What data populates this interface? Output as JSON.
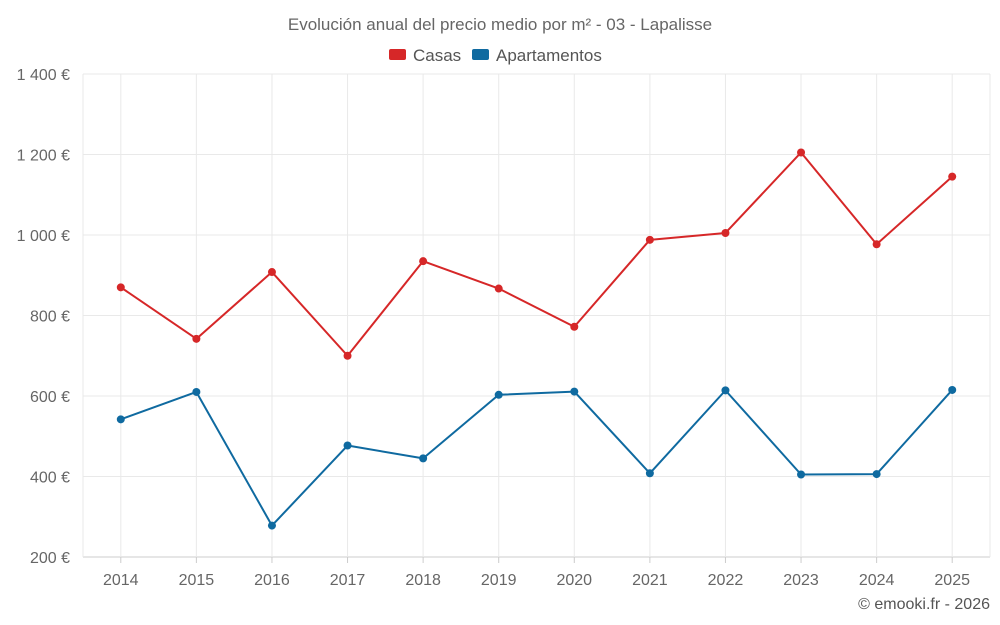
{
  "chart_data": {
    "type": "line",
    "title": "Evolución anual del precio medio por m² - 03 - Lapalisse",
    "categories": [
      "2014",
      "2015",
      "2016",
      "2017",
      "2018",
      "2019",
      "2020",
      "2021",
      "2022",
      "2023",
      "2024",
      "2025"
    ],
    "series": [
      {
        "name": "Casas",
        "color": "#d62728",
        "values": [
          870,
          742,
          908,
          700,
          935,
          867,
          772,
          988,
          1005,
          1205,
          977,
          1145
        ]
      },
      {
        "name": "Apartamentos",
        "color": "#0f6aa0",
        "values": [
          542,
          610,
          278,
          477,
          445,
          603,
          611,
          408,
          614,
          405,
          406,
          615
        ]
      }
    ],
    "y_ticks": [
      "200 €",
      "400 €",
      "600 €",
      "800 €",
      "1 000 €",
      "1 200 €",
      "1 400 €"
    ],
    "y_tick_values": [
      200,
      400,
      600,
      800,
      1000,
      1200,
      1400
    ],
    "ylim": [
      200,
      1400
    ],
    "grid": true,
    "legend_position": "top-center",
    "credit": "© emooki.fr - 2026"
  }
}
